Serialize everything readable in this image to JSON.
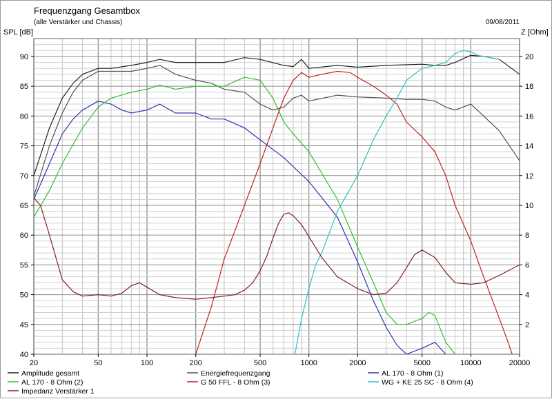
{
  "chart_data": {
    "type": "line",
    "title": "Frequenzgang Gesamtbox",
    "subtitle": "(alle Verstärker und Chassis)",
    "date": "09/08/2011",
    "ylabel_left": "SPL [dB]",
    "ylabel_right": "Z [Ohm]",
    "x_scale": "log",
    "xlim": [
      20,
      20000
    ],
    "ylim_left": [
      40,
      93
    ],
    "ylim_right": [
      0,
      21.2
    ],
    "grid": true,
    "legend_position": "bottom",
    "x_ticks": [
      20,
      50,
      100,
      200,
      500,
      1000,
      2000,
      5000,
      10000,
      20000
    ],
    "x_tick_labels": [
      "20",
      "50",
      "100",
      "200",
      "500",
      "1000",
      "2000",
      "5000",
      "10000",
      "20000"
    ],
    "y_ticks_left": [
      40,
      45,
      50,
      55,
      60,
      65,
      70,
      75,
      80,
      85,
      90
    ],
    "y_tick_labels_left": [
      "40",
      "45",
      "50",
      "55",
      "60",
      "65",
      "70",
      "75",
      "80",
      "85",
      "90"
    ],
    "y_ticks_right": [
      2,
      4,
      6,
      8,
      10,
      12,
      14,
      16,
      18,
      20
    ],
    "y_tick_labels_right": [
      "2",
      "4",
      "6",
      "8",
      "10",
      "12",
      "14",
      "16",
      "18",
      "20"
    ],
    "series": [
      {
        "name": "Amplitude gesamt",
        "axis": "left",
        "color": "#202020",
        "x": [
          20,
          25,
          30,
          35,
          40,
          50,
          60,
          80,
          100,
          120,
          150,
          200,
          250,
          300,
          400,
          500,
          700,
          800,
          900,
          1000,
          1500,
          2000,
          3000,
          5000,
          6000,
          7000,
          8000,
          10000,
          12000,
          15000,
          20000
        ],
        "y": [
          70,
          78,
          83,
          85.5,
          87,
          88,
          88,
          88.5,
          89,
          89.5,
          89,
          89,
          89,
          89,
          89.8,
          89.5,
          88.5,
          88.3,
          89.5,
          88,
          88.5,
          88.2,
          88.5,
          88.7,
          88.5,
          88.5,
          89,
          90.2,
          90,
          89.5,
          87
        ]
      },
      {
        "name": "Energiefrequenzgang",
        "axis": "left",
        "color": "#505050",
        "x": [
          20,
          25,
          30,
          35,
          40,
          50,
          60,
          80,
          100,
          120,
          150,
          200,
          250,
          300,
          400,
          500,
          600,
          700,
          800,
          900,
          1000,
          1500,
          2000,
          3000,
          4000,
          5000,
          6000,
          7000,
          8000,
          10000,
          12000,
          15000,
          20000
        ],
        "y": [
          66.5,
          75,
          80.5,
          84,
          86,
          87.5,
          87.5,
          87.5,
          88,
          88.5,
          87,
          86,
          85.5,
          84.5,
          84,
          82,
          81,
          81.5,
          83,
          83.5,
          82.5,
          83.5,
          83.2,
          83,
          82.8,
          82.8,
          82.5,
          81.5,
          81,
          82,
          80,
          77.5,
          72.5
        ]
      },
      {
        "name": "AL 170 - 8 Ohm (1)",
        "axis": "left",
        "color": "#3030b0",
        "x": [
          20,
          25,
          30,
          35,
          40,
          50,
          60,
          70,
          80,
          100,
          120,
          150,
          200,
          250,
          300,
          400,
          500,
          700,
          1000,
          1500,
          2000,
          2500,
          3000,
          3500,
          4000,
          5000,
          6000,
          7000
        ],
        "y": [
          66,
          72,
          77,
          79.5,
          81,
          82.5,
          82,
          81,
          80.5,
          81,
          82,
          80.5,
          80.5,
          79.5,
          79.5,
          78,
          76,
          73,
          69,
          63,
          55.5,
          49,
          44.5,
          41.5,
          40,
          41,
          42,
          40
        ]
      },
      {
        "name": "AL 170 - 8 Ohm (2)",
        "axis": "left",
        "color": "#30c030",
        "x": [
          20,
          25,
          30,
          40,
          50,
          60,
          80,
          100,
          120,
          150,
          200,
          250,
          300,
          400,
          500,
          600,
          700,
          800,
          1000,
          1500,
          2000,
          2500,
          3000,
          3500,
          4000,
          5000,
          5500,
          6000,
          7000,
          8000
        ],
        "y": [
          63,
          67.5,
          72,
          78,
          81.5,
          83,
          84,
          84.5,
          85.2,
          84.5,
          85,
          85,
          85,
          86.5,
          86,
          83,
          79,
          77,
          74,
          66,
          58,
          52,
          47,
          45,
          45,
          46,
          47,
          46.5,
          42,
          40
        ]
      },
      {
        "name": "G 50 FFL - 8 Ohm (3)",
        "axis": "left",
        "color": "#c02020",
        "x": [
          200,
          250,
          300,
          400,
          500,
          600,
          700,
          800,
          900,
          1000,
          1200,
          1500,
          1800,
          2000,
          2500,
          3000,
          3500,
          4000,
          5000,
          6000,
          7000,
          8000,
          10000,
          12000,
          15000,
          17000,
          18000
        ],
        "y": [
          40,
          48,
          56,
          65,
          72,
          78,
          83,
          86,
          87.3,
          86.5,
          87,
          87.5,
          87.3,
          86.5,
          85,
          83.5,
          82,
          79,
          76.5,
          74,
          70,
          65,
          59,
          53,
          46,
          42,
          40
        ]
      },
      {
        "name": "WG + KE 25 SC - 8 Ohm (4)",
        "axis": "left",
        "color": "#30c0c0",
        "x": [
          820,
          900,
          1000,
          1100,
          1200,
          1500,
          2000,
          2500,
          3000,
          3500,
          4000,
          5000,
          6000,
          7000,
          8000,
          9000,
          10000,
          11000,
          12000,
          15000
        ],
        "y": [
          40,
          46,
          51,
          55,
          57,
          64,
          70,
          76,
          80,
          83,
          86,
          88,
          88.5,
          89,
          90.5,
          91,
          90.8,
          90.2,
          90,
          89.5
        ]
      },
      {
        "name": "Impedanz Verstärker 1",
        "axis": "right",
        "color": "#802020",
        "x": [
          20,
          22,
          25,
          30,
          35,
          40,
          50,
          60,
          70,
          80,
          90,
          100,
          120,
          150,
          200,
          250,
          300,
          350,
          400,
          450,
          500,
          550,
          600,
          650,
          700,
          750,
          800,
          900,
          1000,
          1200,
          1500,
          2000,
          2500,
          3000,
          3500,
          4000,
          4500,
          5000,
          6000,
          7000,
          8000,
          10000,
          12000,
          15000,
          20000
        ],
        "y": [
          10.5,
          10,
          8,
          5,
          4.2,
          3.9,
          4,
          3.9,
          4.1,
          4.6,
          4.8,
          4.5,
          4,
          3.8,
          3.7,
          3.8,
          3.9,
          4,
          4.3,
          4.8,
          5.6,
          6.6,
          7.8,
          8.8,
          9.4,
          9.5,
          9.3,
          8.7,
          7.9,
          6.5,
          5.2,
          4.4,
          4,
          4.1,
          4.8,
          5.8,
          6.7,
          7,
          6.5,
          5.5,
          4.8,
          4.7,
          4.8,
          5.3,
          6
        ]
      }
    ]
  }
}
